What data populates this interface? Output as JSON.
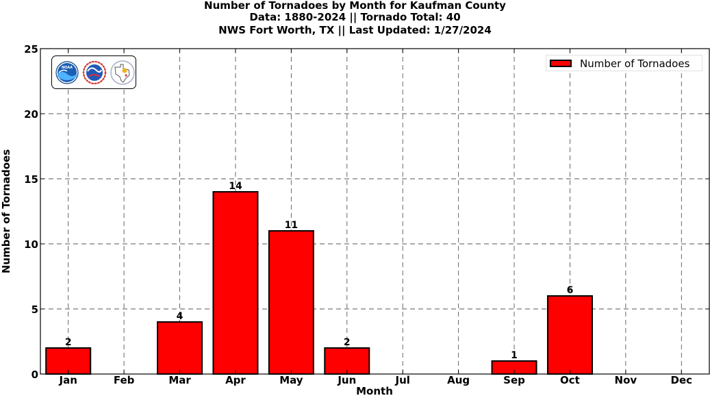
{
  "title": {
    "line1": "Number of Tornadoes by Month for Kaufman County",
    "line2": "Data: 1880-2024 || Tornado Total: 40",
    "line3": "NWS Fort Worth, TX || Last Updated: 1/27/2024"
  },
  "legend": {
    "label": "Number of Tornadoes"
  },
  "logos": [
    "noaa-logo",
    "national-weather-service-logo",
    "texas-logo"
  ],
  "colors": {
    "bar": "#ff0000",
    "bar_edge": "#000000",
    "grid": "#555555"
  },
  "chart_data": {
    "type": "bar",
    "title": "Number of Tornadoes by Month for Kaufman County",
    "xlabel": "Month",
    "ylabel": "Number of Tornadoes",
    "categories": [
      "Jan",
      "Feb",
      "Mar",
      "Apr",
      "May",
      "Jun",
      "Jul",
      "Aug",
      "Sep",
      "Oct",
      "Nov",
      "Dec"
    ],
    "series": [
      {
        "name": "Number of Tornadoes",
        "values": [
          2,
          0,
          4,
          14,
          11,
          2,
          0,
          0,
          1,
          6,
          0,
          0
        ]
      }
    ],
    "data_labels": [
      "2",
      "",
      "4",
      "14",
      "11",
      "2",
      "",
      "",
      "1",
      "6",
      "",
      ""
    ],
    "ylim": [
      0,
      25
    ],
    "yticks": [
      0,
      5,
      10,
      15,
      20,
      25
    ],
    "grid": true,
    "legend_position": "top-right"
  }
}
